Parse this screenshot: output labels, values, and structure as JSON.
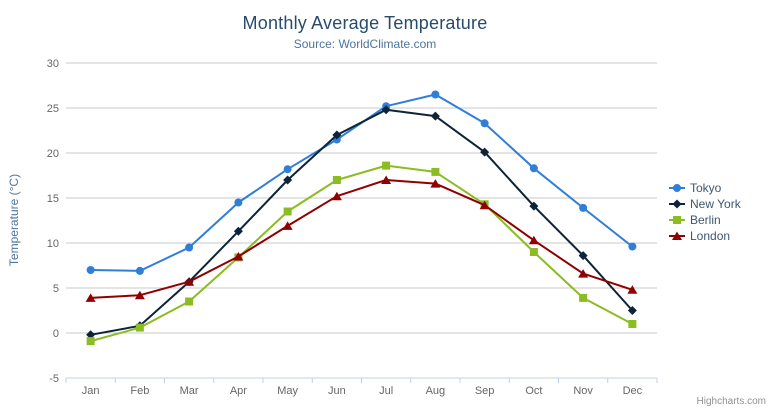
{
  "header": {
    "title": "Monthly Average Temperature",
    "subtitle": "Source: WorldClimate.com"
  },
  "chart_data": {
    "type": "line",
    "categories": [
      "Jan",
      "Feb",
      "Mar",
      "Apr",
      "May",
      "Jun",
      "Jul",
      "Aug",
      "Sep",
      "Oct",
      "Nov",
      "Dec"
    ],
    "series": [
      {
        "name": "Tokyo",
        "color": "#2f7ed8",
        "marker": "circle",
        "values": [
          7.0,
          6.9,
          9.5,
          14.5,
          18.2,
          21.5,
          25.2,
          26.5,
          23.3,
          18.3,
          13.9,
          9.6
        ]
      },
      {
        "name": "New York",
        "color": "#0d233a",
        "marker": "diamond",
        "values": [
          -0.2,
          0.8,
          5.7,
          11.3,
          17.0,
          22.0,
          24.8,
          24.1,
          20.1,
          14.1,
          8.6,
          2.5
        ]
      },
      {
        "name": "Berlin",
        "color": "#8bbc21",
        "marker": "square",
        "values": [
          -0.9,
          0.6,
          3.5,
          8.4,
          13.5,
          17.0,
          18.6,
          17.9,
          14.3,
          9.0,
          3.9,
          1.0
        ]
      },
      {
        "name": "London",
        "color": "#910000",
        "marker": "triangle",
        "values": [
          3.9,
          4.2,
          5.7,
          8.5,
          11.9,
          15.2,
          17.0,
          16.6,
          14.2,
          10.3,
          6.6,
          4.8
        ]
      }
    ],
    "title": "Monthly Average Temperature",
    "subtitle": "Source: WorldClimate.com",
    "xlabel": "",
    "ylabel": "Temperature (°C)",
    "ylim": [
      -5,
      30
    ],
    "y_tick_interval": 5,
    "y_tick_labels": [
      "-5",
      "0",
      "5",
      "10",
      "15",
      "20",
      "25",
      "30"
    ],
    "grid": "horizontal",
    "legend_position": "right"
  },
  "colors": {
    "title": "#274b6d",
    "subtitle": "#4d759e",
    "axis_title": "#4d759e",
    "axis_label": "#666666",
    "grid_line": "#c8c8c8",
    "axis_line": "#c0d0e0",
    "legend_text": "#3e576f",
    "credits": "#909090",
    "menu_icon": "#666666"
  },
  "credits": {
    "label": "Highcharts.com"
  }
}
